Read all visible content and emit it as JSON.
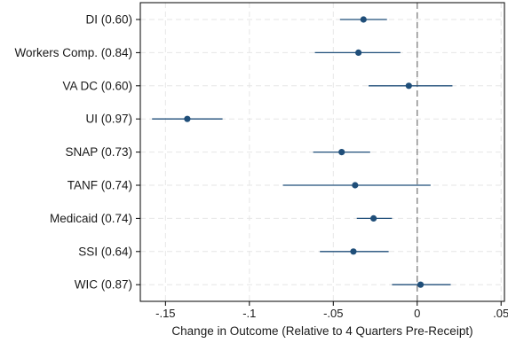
{
  "chart_data": {
    "type": "scatter",
    "subtype": "coefficient-plot",
    "title": "",
    "xlabel": "Change in Outcome (Relative to 4 Quarters Pre-Receipt)",
    "ylabel": "",
    "xlim": [
      -0.165,
      0.052
    ],
    "xticks": [
      -0.15,
      -0.1,
      -0.05,
      0,
      0.05
    ],
    "xtick_labels": [
      "-.15",
      "-.1",
      "-.05",
      "0",
      ".05"
    ],
    "grid": true,
    "reference_line": {
      "x": 0,
      "style": "dashed"
    },
    "categories": [
      "DI (0.60)",
      "Workers Comp. (0.84)",
      "VA DC (0.60)",
      "UI (0.97)",
      "SNAP (0.73)",
      "TANF (0.74)",
      "Medicaid (0.74)",
      "SSI (0.64)",
      "WIC (0.87)"
    ],
    "series": [
      {
        "values": [
          -0.032,
          -0.035,
          -0.005,
          -0.137,
          -0.045,
          -0.037,
          -0.026,
          -0.038,
          0.002
        ],
        "ci_low": [
          -0.046,
          -0.061,
          -0.029,
          -0.158,
          -0.062,
          -0.08,
          -0.036,
          -0.058,
          -0.015
        ],
        "ci_high": [
          -0.018,
          -0.01,
          0.021,
          -0.116,
          -0.028,
          0.008,
          -0.015,
          -0.017,
          0.02
        ]
      }
    ],
    "colors": {
      "marker": "#1f4e79",
      "reference": "#888888",
      "grid": "#e6e6e6"
    }
  }
}
